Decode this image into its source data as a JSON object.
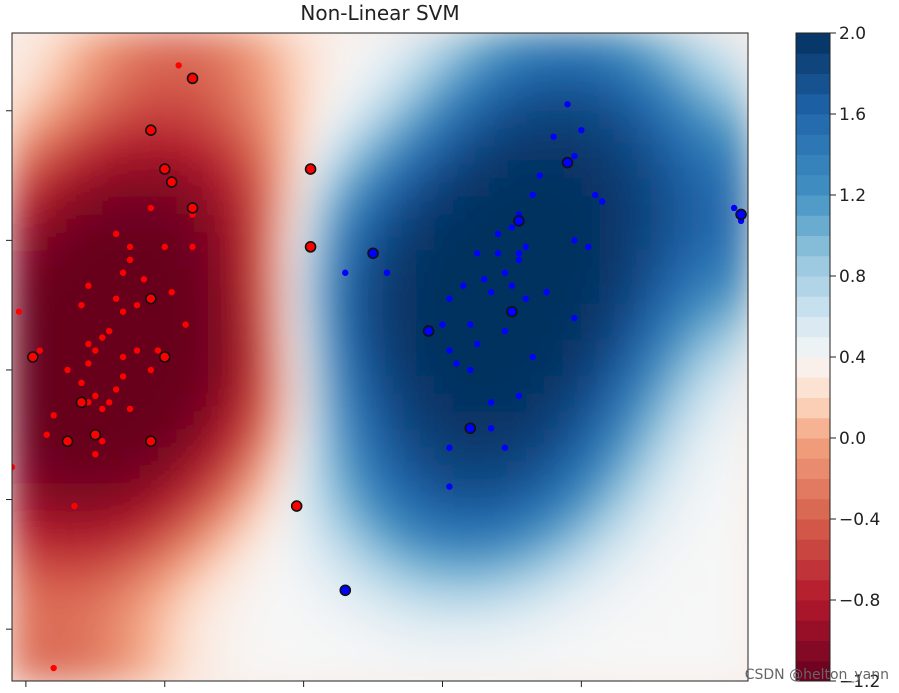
{
  "chart_data": {
    "type": "scatter",
    "title": "Non-Linear SVM",
    "xlabel": "",
    "ylabel": "",
    "xlim": [
      -1.6,
      3.7
    ],
    "ylim": [
      -2.4,
      2.6
    ],
    "x_ticks": [
      -1.5,
      -0.5,
      0.5,
      1.5,
      2.5
    ],
    "y_ticks": [
      -2,
      -1,
      0,
      1,
      2
    ],
    "x_tick_labels": [],
    "y_tick_labels": [],
    "colorbar": {
      "min": -1.2,
      "max": 2.0,
      "ticks": [
        "2.0",
        "1.6",
        "1.2",
        "0.8",
        "0.4",
        "0.0",
        "−0.4",
        "−0.8",
        "−1.2"
      ],
      "colormap": "RdBu"
    },
    "series": [
      {
        "color": "#ff0000",
        "points": [
          [
            -0.4,
            2.35
          ],
          [
            -0.3,
            1.2
          ],
          [
            -0.3,
            0.95
          ],
          [
            -0.6,
            1.25
          ],
          [
            -0.35,
            0.35
          ],
          [
            -0.45,
            0.6
          ],
          [
            -0.7,
            0.5
          ],
          [
            -0.85,
            0.55
          ],
          [
            -0.8,
            0.45
          ],
          [
            -0.9,
            0.3
          ],
          [
            -0.95,
            0.25
          ],
          [
            -1.0,
            0.15
          ],
          [
            -1.05,
            0.05
          ],
          [
            -1.1,
            -0.1
          ],
          [
            -1.05,
            -0.25
          ],
          [
            -0.9,
            -0.25
          ],
          [
            -0.8,
            -0.05
          ],
          [
            -0.85,
            -0.15
          ],
          [
            -1.0,
            -0.2
          ],
          [
            -0.95,
            -0.3
          ],
          [
            -0.7,
            0.15
          ],
          [
            -0.55,
            0.15
          ],
          [
            -0.65,
            0.7
          ],
          [
            -0.75,
            0.85
          ],
          [
            -0.8,
            0.75
          ],
          [
            -0.85,
            1.05
          ],
          [
            -1.05,
            0.65
          ],
          [
            -1.1,
            0.5
          ],
          [
            -1.05,
            0.2
          ],
          [
            -0.75,
            -0.3
          ],
          [
            -1.2,
            0.0
          ],
          [
            -1.35,
            -0.5
          ],
          [
            -1.15,
            -1.05
          ],
          [
            -1.3,
            -0.35
          ],
          [
            -0.95,
            -0.55
          ],
          [
            -0.8,
            0.1
          ],
          [
            -0.6,
            -0.0
          ],
          [
            -1.0,
            -0.65
          ],
          [
            -1.4,
            0.15
          ],
          [
            -1.55,
            0.45
          ],
          [
            -1.6,
            -0.75
          ],
          [
            -1.3,
            -2.3
          ],
          [
            -0.75,
            0.95
          ],
          [
            -0.5,
            0.95
          ]
        ]
      },
      {
        "color": "#0000ff",
        "points": [
          [
            0.8,
            0.75
          ],
          [
            1.1,
            0.75
          ],
          [
            1.5,
            0.35
          ],
          [
            1.55,
            0.55
          ],
          [
            1.65,
            0.65
          ],
          [
            1.75,
            0.9
          ],
          [
            1.9,
            1.05
          ],
          [
            2.0,
            1.1
          ],
          [
            2.05,
            1.2
          ],
          [
            2.15,
            1.35
          ],
          [
            2.05,
            0.9
          ],
          [
            1.95,
            0.75
          ],
          [
            2.1,
            0.55
          ],
          [
            2.25,
            0.6
          ],
          [
            1.85,
            0.6
          ],
          [
            1.7,
            0.35
          ],
          [
            1.55,
            0.15
          ],
          [
            1.6,
            0.05
          ],
          [
            1.75,
            0.2
          ],
          [
            1.8,
            0.7
          ],
          [
            1.9,
            0.9
          ],
          [
            2.0,
            0.65
          ],
          [
            1.95,
            0.3
          ],
          [
            2.0,
            0.45
          ],
          [
            2.05,
            0.85
          ],
          [
            1.7,
            0.0
          ],
          [
            1.85,
            -0.25
          ],
          [
            1.7,
            -0.45
          ],
          [
            1.55,
            -0.6
          ],
          [
            1.95,
            -0.6
          ],
          [
            1.85,
            -0.45
          ],
          [
            2.05,
            -0.2
          ],
          [
            2.15,
            0.1
          ],
          [
            2.45,
            0.4
          ],
          [
            2.55,
            0.95
          ],
          [
            2.6,
            1.35
          ],
          [
            2.45,
            1.65
          ],
          [
            2.4,
            2.05
          ],
          [
            2.2,
            1.5
          ],
          [
            2.3,
            1.8
          ],
          [
            2.65,
            1.3
          ],
          [
            3.6,
            1.25
          ],
          [
            3.65,
            1.15
          ],
          [
            2.5,
            1.85
          ],
          [
            1.55,
            -0.9
          ],
          [
            2.45,
            1.0
          ],
          [
            2.1,
            0.95
          ]
        ]
      }
    ],
    "support_vectors": [
      [
        -0.3,
        2.25
      ],
      [
        -0.6,
        1.85
      ],
      [
        -1.45,
        0.1
      ],
      [
        -1.1,
        -0.25
      ],
      [
        -1.0,
        -0.5
      ],
      [
        -1.2,
        -0.55
      ],
      [
        -0.6,
        -0.55
      ],
      [
        -0.6,
        0.55
      ],
      [
        -0.5,
        0.1
      ],
      [
        -0.5,
        1.55
      ],
      [
        -0.45,
        1.45
      ],
      [
        -0.3,
        1.25
      ],
      [
        0.55,
        0.95
      ],
      [
        0.55,
        1.55
      ],
      [
        0.45,
        -1.05
      ],
      [
        0.8,
        -1.7
      ],
      [
        1.0,
        0.9
      ],
      [
        1.4,
        0.3
      ],
      [
        1.7,
        -0.45
      ],
      [
        2.0,
        0.45
      ],
      [
        2.05,
        1.15
      ],
      [
        2.4,
        1.6
      ],
      [
        3.65,
        1.2
      ]
    ]
  },
  "watermark": "CSDN @helton_yann"
}
